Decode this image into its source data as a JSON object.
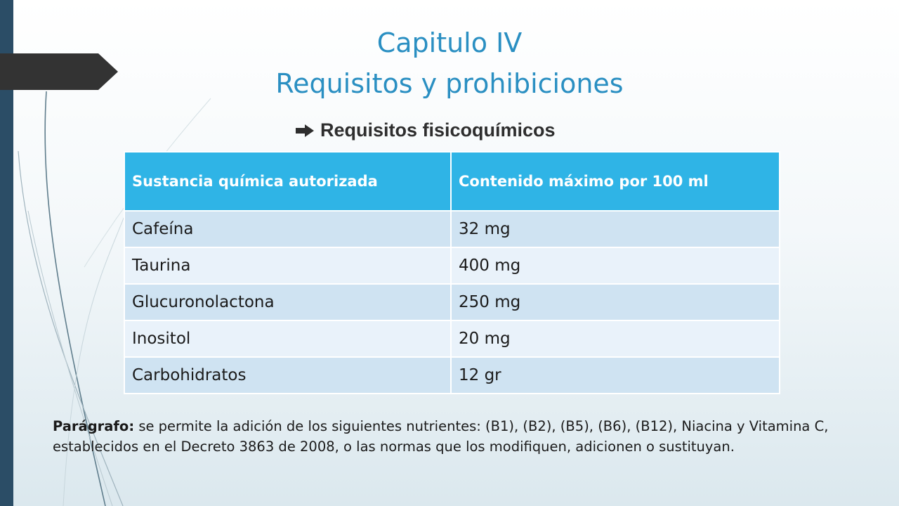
{
  "title_line1": "Capitulo IV",
  "title_line2": "Requisitos y prohibiciones",
  "subheading": "Requisitos fisicoquímicos",
  "table": {
    "headers": [
      "Sustancia química autorizada",
      "Contenido máximo  por 100 ml"
    ],
    "rows": [
      [
        "Cafeína",
        "32 mg"
      ],
      [
        "Taurina",
        "400 mg"
      ],
      [
        "Glucuronolactona",
        "250 mg"
      ],
      [
        "Inositol",
        "20 mg"
      ],
      [
        "Carbohidratos",
        "12 gr"
      ]
    ]
  },
  "note": {
    "label": "Parágrafo:",
    "text": " se permite la adición de los siguientes nutrientes: (B1), (B2), (B5), (B6), (B12), Niacina y Vitamina C, establecidos en el Decreto 3863 de 2008, o las normas que los modifiquen, adicionen o sustituyan."
  },
  "colors": {
    "title": "#2a8fc2",
    "header_bg": "#2fb4e6",
    "row_odd": "#cfe3f2",
    "row_even": "#e9f2fa",
    "sidebar": "#2b4d66",
    "tab": "#333333"
  },
  "icons": {
    "subheading_bullet": "arrow-right-icon"
  }
}
